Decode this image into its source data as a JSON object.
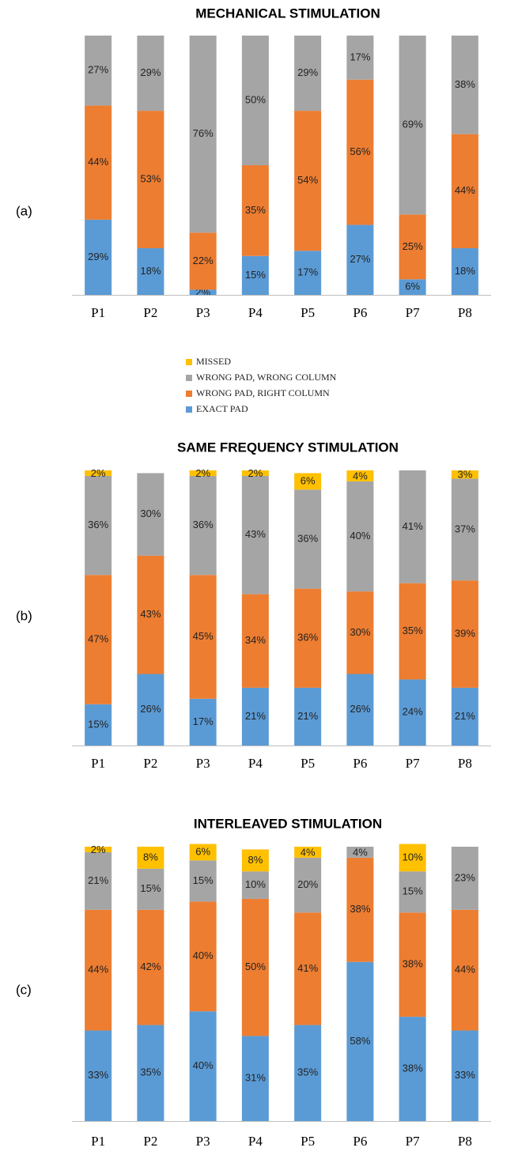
{
  "chart_data": [
    {
      "type": "bar",
      "stacked": true,
      "title": "MECHANICAL STIMULATION",
      "panel_label": "(a)",
      "legend": true,
      "categories": [
        "P1",
        "P2",
        "P3",
        "P4",
        "P5",
        "P6",
        "P7",
        "P8"
      ],
      "ylim": [
        0,
        100
      ],
      "series": [
        {
          "name": "MISSED",
          "color": "#ffc000",
          "values": [
            0,
            0,
            0,
            0,
            0,
            0,
            0,
            0
          ],
          "value_labels": [
            null,
            null,
            null,
            null,
            null,
            null,
            null,
            null
          ]
        },
        {
          "name": "WRONG PAD, WRONG COLUMN",
          "color": "#a5a5a5",
          "values": [
            27,
            29,
            76,
            50,
            29,
            17,
            69,
            38
          ],
          "value_labels": [
            "27%",
            "29%",
            "76%",
            "50%",
            "29%",
            "17%",
            "69%",
            "38%"
          ]
        },
        {
          "name": "WRONG PAD, RIGHT COLUMN",
          "color": "#ed7d31",
          "values": [
            44,
            53,
            22,
            35,
            54,
            56,
            25,
            44
          ],
          "value_labels": [
            "44%",
            "53%",
            "22%",
            "35%",
            "54%",
            "56%",
            "25%",
            "44%"
          ]
        },
        {
          "name": "EXACT PAD",
          "color": "#5b9bd5",
          "values": [
            29,
            18,
            2,
            15,
            17,
            27,
            6,
            18
          ],
          "value_labels": [
            "29%",
            "18%",
            "2%",
            "15%",
            "17%",
            "27%",
            "6%",
            "18%"
          ]
        }
      ]
    },
    {
      "type": "bar",
      "stacked": true,
      "title": "SAME FREQUENCY STIMULATION",
      "panel_label": "(b)",
      "legend": false,
      "categories": [
        "P1",
        "P2",
        "P3",
        "P4",
        "P5",
        "P6",
        "P7",
        "P8"
      ],
      "ylim": [
        0,
        100
      ],
      "series": [
        {
          "name": "MISSED",
          "color": "#ffc000",
          "values": [
            2,
            0,
            2,
            2,
            6,
            4,
            0,
            3
          ],
          "value_labels": [
            "2%",
            null,
            "2%",
            "2%",
            "6%",
            "4%",
            null,
            "3%"
          ]
        },
        {
          "name": "WRONG PAD, WRONG COLUMN",
          "color": "#a5a5a5",
          "values": [
            36,
            30,
            36,
            43,
            36,
            40,
            41,
            37
          ],
          "value_labels": [
            "36%",
            "30%",
            "36%",
            "43%",
            "36%",
            "40%",
            "41%",
            "37%"
          ]
        },
        {
          "name": "WRONG PAD, RIGHT COLUMN",
          "color": "#ed7d31",
          "values": [
            47,
            43,
            45,
            34,
            36,
            30,
            35,
            39
          ],
          "value_labels": [
            "47%",
            "43%",
            "45%",
            "34%",
            "36%",
            "30%",
            "35%",
            "39%"
          ]
        },
        {
          "name": "EXACT PAD",
          "color": "#5b9bd5",
          "values": [
            15,
            26,
            17,
            21,
            21,
            26,
            24,
            21
          ],
          "value_labels": [
            "15%",
            "26%",
            "17%",
            "21%",
            "21%",
            "26%",
            "24%",
            "21%"
          ]
        }
      ]
    },
    {
      "type": "bar",
      "stacked": true,
      "title": "INTERLEAVED STIMULATION",
      "panel_label": "(c)",
      "legend": false,
      "categories": [
        "P1",
        "P2",
        "P3",
        "P4",
        "P5",
        "P6",
        "P7",
        "P8"
      ],
      "ylim": [
        0,
        100
      ],
      "series": [
        {
          "name": "MISSED",
          "color": "#ffc000",
          "values": [
            2,
            8,
            6,
            8,
            4,
            0,
            10,
            0
          ],
          "value_labels": [
            "2%",
            "8%",
            "6%",
            "8%",
            "4%",
            null,
            "10%",
            null
          ]
        },
        {
          "name": "WRONG PAD, WRONG COLUMN",
          "color": "#a5a5a5",
          "values": [
            21,
            15,
            15,
            10,
            20,
            4,
            15,
            23
          ],
          "value_labels": [
            "21%",
            "15%",
            "15%",
            "10%",
            "20%",
            "4%",
            "15%",
            "23%"
          ]
        },
        {
          "name": "WRONG PAD, RIGHT COLUMN",
          "color": "#ed7d31",
          "values": [
            44,
            42,
            40,
            50,
            41,
            38,
            38,
            44
          ],
          "value_labels": [
            "44%",
            "42%",
            "40%",
            "50%",
            "41%",
            "38%",
            "38%",
            "44%"
          ]
        },
        {
          "name": "EXACT PAD",
          "color": "#5b9bd5",
          "values": [
            33,
            35,
            40,
            31,
            35,
            58,
            38,
            33
          ],
          "value_labels": [
            "33%",
            "35%",
            "40%",
            "31%",
            "35%",
            "58%",
            "38%",
            "33%"
          ]
        }
      ]
    }
  ]
}
